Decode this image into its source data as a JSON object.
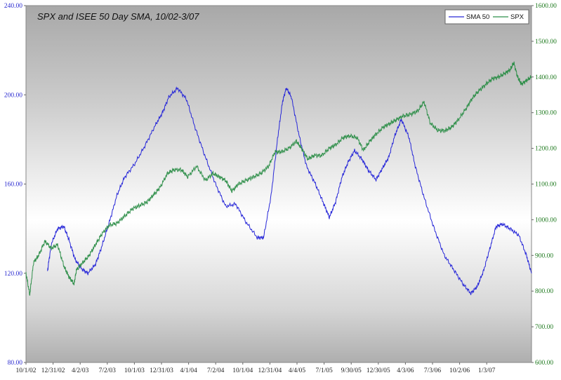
{
  "chart_data": {
    "type": "line",
    "title": "SPX and ISEE 50 Day SMA, 10/02-3/07",
    "xlabel": "",
    "ylabel": "",
    "x_ticks": [
      "10/1/02",
      "12/31/02",
      "4/2/03",
      "7/2/03",
      "10/1/03",
      "12/31/03",
      "4/1/04",
      "7/2/04",
      "10/1/04",
      "12/31/04",
      "4/4/05",
      "7/1/05",
      "9/30/05",
      "12/30/05",
      "4/3/06",
      "7/3/06",
      "10/2/06",
      "1/3/07"
    ],
    "y_left": {
      "min": 80,
      "max": 240,
      "ticks": [
        "80.00",
        "120.00",
        "160.00",
        "200.00",
        "240.00"
      ],
      "color": "#2a2ad0"
    },
    "y_right": {
      "min": 600,
      "max": 1600,
      "ticks": [
        "600.00",
        "700.00",
        "800.00",
        "900.00",
        "1000.00",
        "1100.00",
        "1200.00",
        "1300.00",
        "1400.00",
        "1500.00",
        "1600.00"
      ],
      "color": "#1f7a1f"
    },
    "grid": false,
    "legend_position": "top-right",
    "series": [
      {
        "name": "SMA 50",
        "axis": "left",
        "color": "#2727d8",
        "points": [
          [
            1.7,
            121
          ],
          [
            2.0,
            133
          ],
          [
            2.5,
            140
          ],
          [
            3.0,
            141
          ],
          [
            3.4,
            135
          ],
          [
            3.9,
            126
          ],
          [
            4.4,
            122
          ],
          [
            4.9,
            120
          ],
          [
            5.5,
            124
          ],
          [
            6.0,
            132
          ],
          [
            6.6,
            143
          ],
          [
            7.2,
            155
          ],
          [
            7.8,
            163
          ],
          [
            8.6,
            169
          ],
          [
            9.4,
            177
          ],
          [
            10.2,
            186
          ],
          [
            10.8,
            192
          ],
          [
            11.3,
            199
          ],
          [
            12.0,
            203
          ],
          [
            12.7,
            198
          ],
          [
            13.4,
            185
          ],
          [
            14.2,
            172
          ],
          [
            15.0,
            160
          ],
          [
            15.8,
            150
          ],
          [
            16.6,
            151
          ],
          [
            17.4,
            143
          ],
          [
            18.3,
            136
          ],
          [
            18.8,
            136
          ],
          [
            19.4,
            155
          ],
          [
            19.9,
            180
          ],
          [
            20.3,
            197
          ],
          [
            20.6,
            203
          ],
          [
            21.0,
            199
          ],
          [
            21.6,
            182
          ],
          [
            22.2,
            168
          ],
          [
            22.9,
            160
          ],
          [
            23.5,
            152
          ],
          [
            24.0,
            145
          ],
          [
            24.5,
            152
          ],
          [
            25.0,
            163
          ],
          [
            25.5,
            170
          ],
          [
            26.0,
            175
          ],
          [
            26.6,
            171
          ],
          [
            27.1,
            166
          ],
          [
            27.7,
            162
          ],
          [
            28.2,
            167
          ],
          [
            28.7,
            172
          ],
          [
            29.2,
            182
          ],
          [
            29.7,
            189
          ],
          [
            30.3,
            181
          ],
          [
            30.8,
            168
          ],
          [
            31.5,
            154
          ],
          [
            32.3,
            140
          ],
          [
            33.1,
            128
          ],
          [
            33.8,
            122
          ],
          [
            34.6,
            115
          ],
          [
            35.2,
            111
          ],
          [
            35.7,
            114
          ],
          [
            36.2,
            121
          ],
          [
            36.7,
            131
          ],
          [
            37.2,
            141
          ],
          [
            37.7,
            142
          ],
          [
            38.3,
            140
          ],
          [
            39.0,
            137
          ],
          [
            39.6,
            128
          ],
          [
            40.0,
            120
          ]
        ]
      },
      {
        "name": "SPX",
        "axis": "right",
        "color": "#2f8f4a",
        "points": [
          [
            0,
            850
          ],
          [
            0.3,
            790
          ],
          [
            0.6,
            880
          ],
          [
            1.0,
            900
          ],
          [
            1.5,
            940
          ],
          [
            2.0,
            920
          ],
          [
            2.5,
            930
          ],
          [
            3.0,
            870
          ],
          [
            3.4,
            840
          ],
          [
            3.8,
            820
          ],
          [
            4.0,
            860
          ],
          [
            4.5,
            880
          ],
          [
            5.0,
            900
          ],
          [
            5.5,
            930
          ],
          [
            6.0,
            960
          ],
          [
            6.6,
            985
          ],
          [
            7.2,
            990
          ],
          [
            7.8,
            1010
          ],
          [
            8.4,
            1030
          ],
          [
            9.0,
            1040
          ],
          [
            9.6,
            1050
          ],
          [
            10.1,
            1070
          ],
          [
            10.6,
            1090
          ],
          [
            11.2,
            1130
          ],
          [
            11.7,
            1140
          ],
          [
            12.3,
            1140
          ],
          [
            12.8,
            1120
          ],
          [
            13.5,
            1150
          ],
          [
            14.2,
            1110
          ],
          [
            14.8,
            1130
          ],
          [
            15.3,
            1120
          ],
          [
            15.8,
            1110
          ],
          [
            16.3,
            1080
          ],
          [
            16.8,
            1100
          ],
          [
            17.4,
            1110
          ],
          [
            18.0,
            1120
          ],
          [
            18.6,
            1130
          ],
          [
            19.2,
            1150
          ],
          [
            19.7,
            1190
          ],
          [
            20.2,
            1190
          ],
          [
            20.8,
            1200
          ],
          [
            21.4,
            1220
          ],
          [
            21.8,
            1200
          ],
          [
            22.3,
            1170
          ],
          [
            22.8,
            1180
          ],
          [
            23.4,
            1180
          ],
          [
            24.0,
            1200
          ],
          [
            24.5,
            1210
          ],
          [
            25.1,
            1230
          ],
          [
            25.6,
            1235
          ],
          [
            26.2,
            1230
          ],
          [
            26.7,
            1195
          ],
          [
            27.2,
            1220
          ],
          [
            27.7,
            1240
          ],
          [
            28.3,
            1260
          ],
          [
            28.8,
            1270
          ],
          [
            29.3,
            1280
          ],
          [
            29.8,
            1290
          ],
          [
            30.4,
            1295
          ],
          [
            31.0,
            1305
          ],
          [
            31.5,
            1330
          ],
          [
            32.0,
            1270
          ],
          [
            32.6,
            1250
          ],
          [
            33.2,
            1250
          ],
          [
            33.7,
            1260
          ],
          [
            34.2,
            1280
          ],
          [
            34.8,
            1310
          ],
          [
            35.3,
            1340
          ],
          [
            35.8,
            1360
          ],
          [
            36.4,
            1380
          ],
          [
            36.9,
            1395
          ],
          [
            37.4,
            1400
          ],
          [
            37.9,
            1410
          ],
          [
            38.3,
            1420
          ],
          [
            38.6,
            1440
          ],
          [
            38.9,
            1400
          ],
          [
            39.2,
            1380
          ],
          [
            39.6,
            1390
          ],
          [
            40.0,
            1400
          ]
        ]
      }
    ]
  }
}
